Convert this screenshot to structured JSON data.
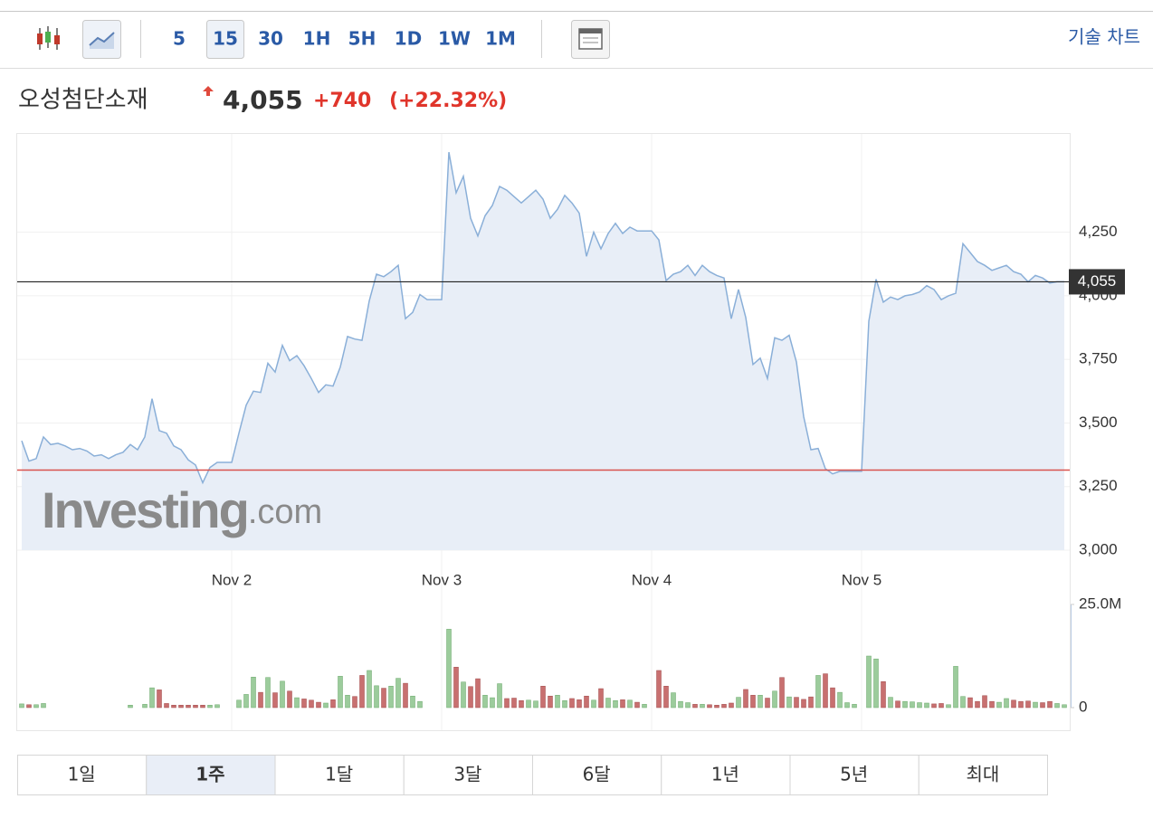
{
  "toolbar": {
    "intervals": [
      "5",
      "15",
      "30",
      "1H",
      "5H",
      "1D",
      "1W",
      "1M"
    ],
    "selected": 1,
    "right_link": "기술 차트"
  },
  "header": {
    "name": "오성첨단소재",
    "price": "4,055",
    "change": "+740",
    "change_pct": "(+22.32%)"
  },
  "periods": {
    "items": [
      "1일",
      "1주",
      "1달",
      "3달",
      "6달",
      "1년",
      "5년",
      "최대"
    ],
    "selected": 1
  },
  "chart_data": {
    "type": "line",
    "watermark": [
      "Investing",
      ".com"
    ],
    "categories": [
      null,
      null,
      null,
      null,
      null,
      null,
      null,
      null,
      null,
      null,
      null,
      null,
      null,
      null,
      null,
      null,
      null,
      null,
      null,
      null,
      null,
      null,
      null,
      null,
      null,
      null,
      null,
      null,
      null,
      "Nov 2",
      null,
      null,
      null,
      null,
      null,
      null,
      null,
      null,
      null,
      null,
      null,
      null,
      null,
      null,
      null,
      null,
      null,
      null,
      null,
      null,
      null,
      null,
      null,
      null,
      null,
      null,
      null,
      null,
      "Nov 3",
      null,
      null,
      null,
      null,
      null,
      null,
      null,
      null,
      null,
      null,
      null,
      null,
      null,
      null,
      null,
      null,
      null,
      null,
      null,
      null,
      null,
      null,
      null,
      null,
      null,
      null,
      null,
      null,
      "Nov 4",
      null,
      null,
      null,
      null,
      null,
      null,
      null,
      null,
      null,
      null,
      null,
      null,
      null,
      null,
      null,
      null,
      null,
      null,
      null,
      null,
      null,
      null,
      null,
      null,
      null,
      null,
      null,
      null,
      "Nov 5",
      null,
      null,
      null,
      null,
      null,
      null,
      null,
      null,
      null,
      null,
      null,
      null,
      null,
      null,
      null,
      null,
      null,
      null,
      null,
      null,
      null,
      null,
      null,
      null,
      null,
      null,
      null,
      null
    ],
    "series": [
      {
        "color": "#8aafd8",
        "fill": "#e8eef7",
        "values": [
          3430,
          3350,
          3360,
          3445,
          3415,
          3420,
          3410,
          3395,
          3400,
          3390,
          3370,
          3375,
          3360,
          3375,
          3385,
          3415,
          3395,
          3445,
          3595,
          3470,
          3460,
          3410,
          3395,
          3355,
          3335,
          3265,
          3325,
          3345,
          3345,
          3345,
          3460,
          3570,
          3625,
          3620,
          3735,
          3700,
          3805,
          3745,
          3765,
          3725,
          3675,
          3620,
          3650,
          3645,
          3720,
          3840,
          3830,
          3825,
          3980,
          4085,
          4075,
          4095,
          4120,
          3910,
          3935,
          4005,
          3985,
          3985,
          3985,
          4565,
          4405,
          4470,
          4305,
          4235,
          4315,
          4355,
          4430,
          4415,
          4390,
          4365,
          4390,
          4415,
          4380,
          4305,
          4340,
          4395,
          4365,
          4325,
          4155,
          4250,
          4185,
          4245,
          4285,
          4245,
          4270,
          4255,
          4255,
          4255,
          4220,
          4060,
          4085,
          4095,
          4120,
          4080,
          4120,
          4095,
          4080,
          4070,
          3910,
          4025,
          3915,
          3730,
          3755,
          3675,
          3835,
          3825,
          3845,
          3740,
          3525,
          3395,
          3400,
          3320,
          3300,
          3310,
          3310,
          3310,
          3310,
          3900,
          4065,
          3975,
          3995,
          3985,
          4000,
          4005,
          4015,
          4040,
          4025,
          3985,
          4000,
          4010,
          4205,
          4170,
          4135,
          4120,
          4100,
          4110,
          4120,
          4095,
          4085,
          4055,
          4080,
          4070,
          4050,
          4055,
          4055
        ]
      }
    ],
    "ylim": [
      3000,
      4640
    ],
    "yticks": [
      {
        "value": 3000,
        "label": "3,000"
      },
      {
        "value": 3250,
        "label": "3,250"
      },
      {
        "value": 3500,
        "label": "3,500"
      },
      {
        "value": 3750,
        "label": "3,750"
      },
      {
        "value": 4000,
        "label": "4,000"
      },
      {
        "value": 4250,
        "label": "4,250"
      }
    ],
    "grid": true,
    "current": {
      "value": 4055,
      "label": "4,055",
      "color": "#222"
    },
    "prev_close": {
      "value": 3315,
      "color": "#d9534f"
    },
    "volume": {
      "ylim": [
        0,
        25000000
      ],
      "yticks": [
        0,
        {
          "value": 25000000,
          "label": "25.0M"
        }
      ],
      "up_color": "#9ccc9c",
      "down_color": "#c87070",
      "values": [
        900000,
        700000,
        700000,
        1000000,
        0,
        0,
        0,
        0,
        0,
        0,
        0,
        0,
        0,
        0,
        0,
        600000,
        0,
        800000,
        4800000,
        4300000,
        1000000,
        600000,
        600000,
        600000,
        600000,
        600000,
        600000,
        700000,
        0,
        0,
        1800000,
        3200000,
        7400000,
        3700000,
        7300000,
        3600000,
        6400000,
        4000000,
        2400000,
        2100000,
        1800000,
        1300000,
        1100000,
        1900000,
        7600000,
        3000000,
        2700000,
        7800000,
        9000000,
        5300000,
        4700000,
        5200000,
        7100000,
        5900000,
        2800000,
        1500000,
        0,
        0,
        0,
        19000000,
        9800000,
        6200000,
        5100000,
        7000000,
        3000000,
        2400000,
        5800000,
        2200000,
        2300000,
        1700000,
        1800000,
        1600000,
        5200000,
        2800000,
        3000000,
        1700000,
        2200000,
        1900000,
        2800000,
        1800000,
        4600000,
        2300000,
        1700000,
        1900000,
        1800000,
        1300000,
        800000,
        0,
        9000000,
        5200000,
        3600000,
        1500000,
        1200000,
        800000,
        800000,
        700000,
        600000,
        800000,
        1100000,
        2500000,
        4400000,
        3000000,
        3000000,
        2300000,
        4000000,
        7300000,
        2600000,
        2500000,
        2000000,
        2600000,
        7800000,
        8200000,
        4800000,
        3700000,
        1200000,
        800000,
        0,
        12500000,
        11800000,
        6300000,
        2500000,
        1600000,
        1500000,
        1400000,
        1200000,
        1100000,
        900000,
        1000000,
        700000,
        10000000,
        2700000,
        2400000,
        1500000,
        2900000,
        1500000,
        1300000,
        2200000,
        1800000,
        1500000,
        1600000,
        1300000,
        1200000,
        1500000,
        1000000,
        700000
      ]
    }
  }
}
